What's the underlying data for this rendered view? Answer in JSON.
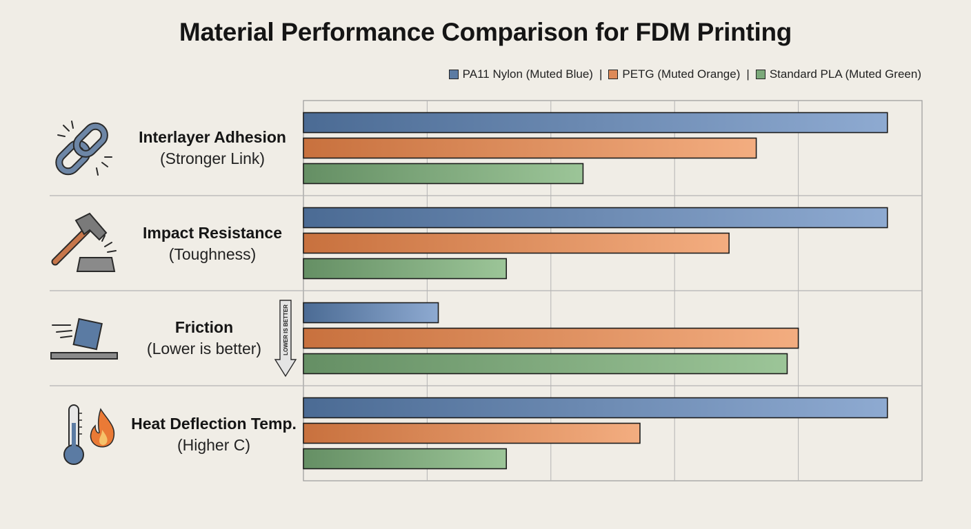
{
  "chart_data": {
    "type": "bar",
    "title": "Material Performance Comparison for FDM Printing",
    "orientation": "horizontal",
    "categories": [
      {
        "name": "Interlayer Adhesion",
        "sub": "(Stronger Link)",
        "icon": "chain-link-icon"
      },
      {
        "name": "Impact Resistance",
        "sub": "(Toughness)",
        "icon": "hammer-anvil-icon"
      },
      {
        "name": "Friction",
        "sub": "(Lower is better)",
        "icon": "sliding-block-icon",
        "annotation": "LOWER IS BETTER"
      },
      {
        "name": "Heat Deflection Temp.",
        "sub": "(Higher C)",
        "icon": "thermometer-flame-icon"
      }
    ],
    "series": [
      {
        "name": "PA11 Nylon (Muted Blue)",
        "color": "#5b7ba3",
        "values": [
          4.72,
          4.72,
          1.09,
          4.72
        ]
      },
      {
        "name": "PETG (Muted Orange)",
        "color": "#de8a58",
        "values": [
          3.66,
          3.44,
          4.0,
          2.72
        ]
      },
      {
        "name": "Standard PLA (Muted Green)",
        "color": "#7ba97a",
        "values": [
          2.26,
          1.64,
          3.91,
          1.64
        ]
      }
    ],
    "xlim": [
      0,
      5
    ],
    "grid": true,
    "legend_position": "top-right",
    "xlabel": "",
    "ylabel": ""
  }
}
